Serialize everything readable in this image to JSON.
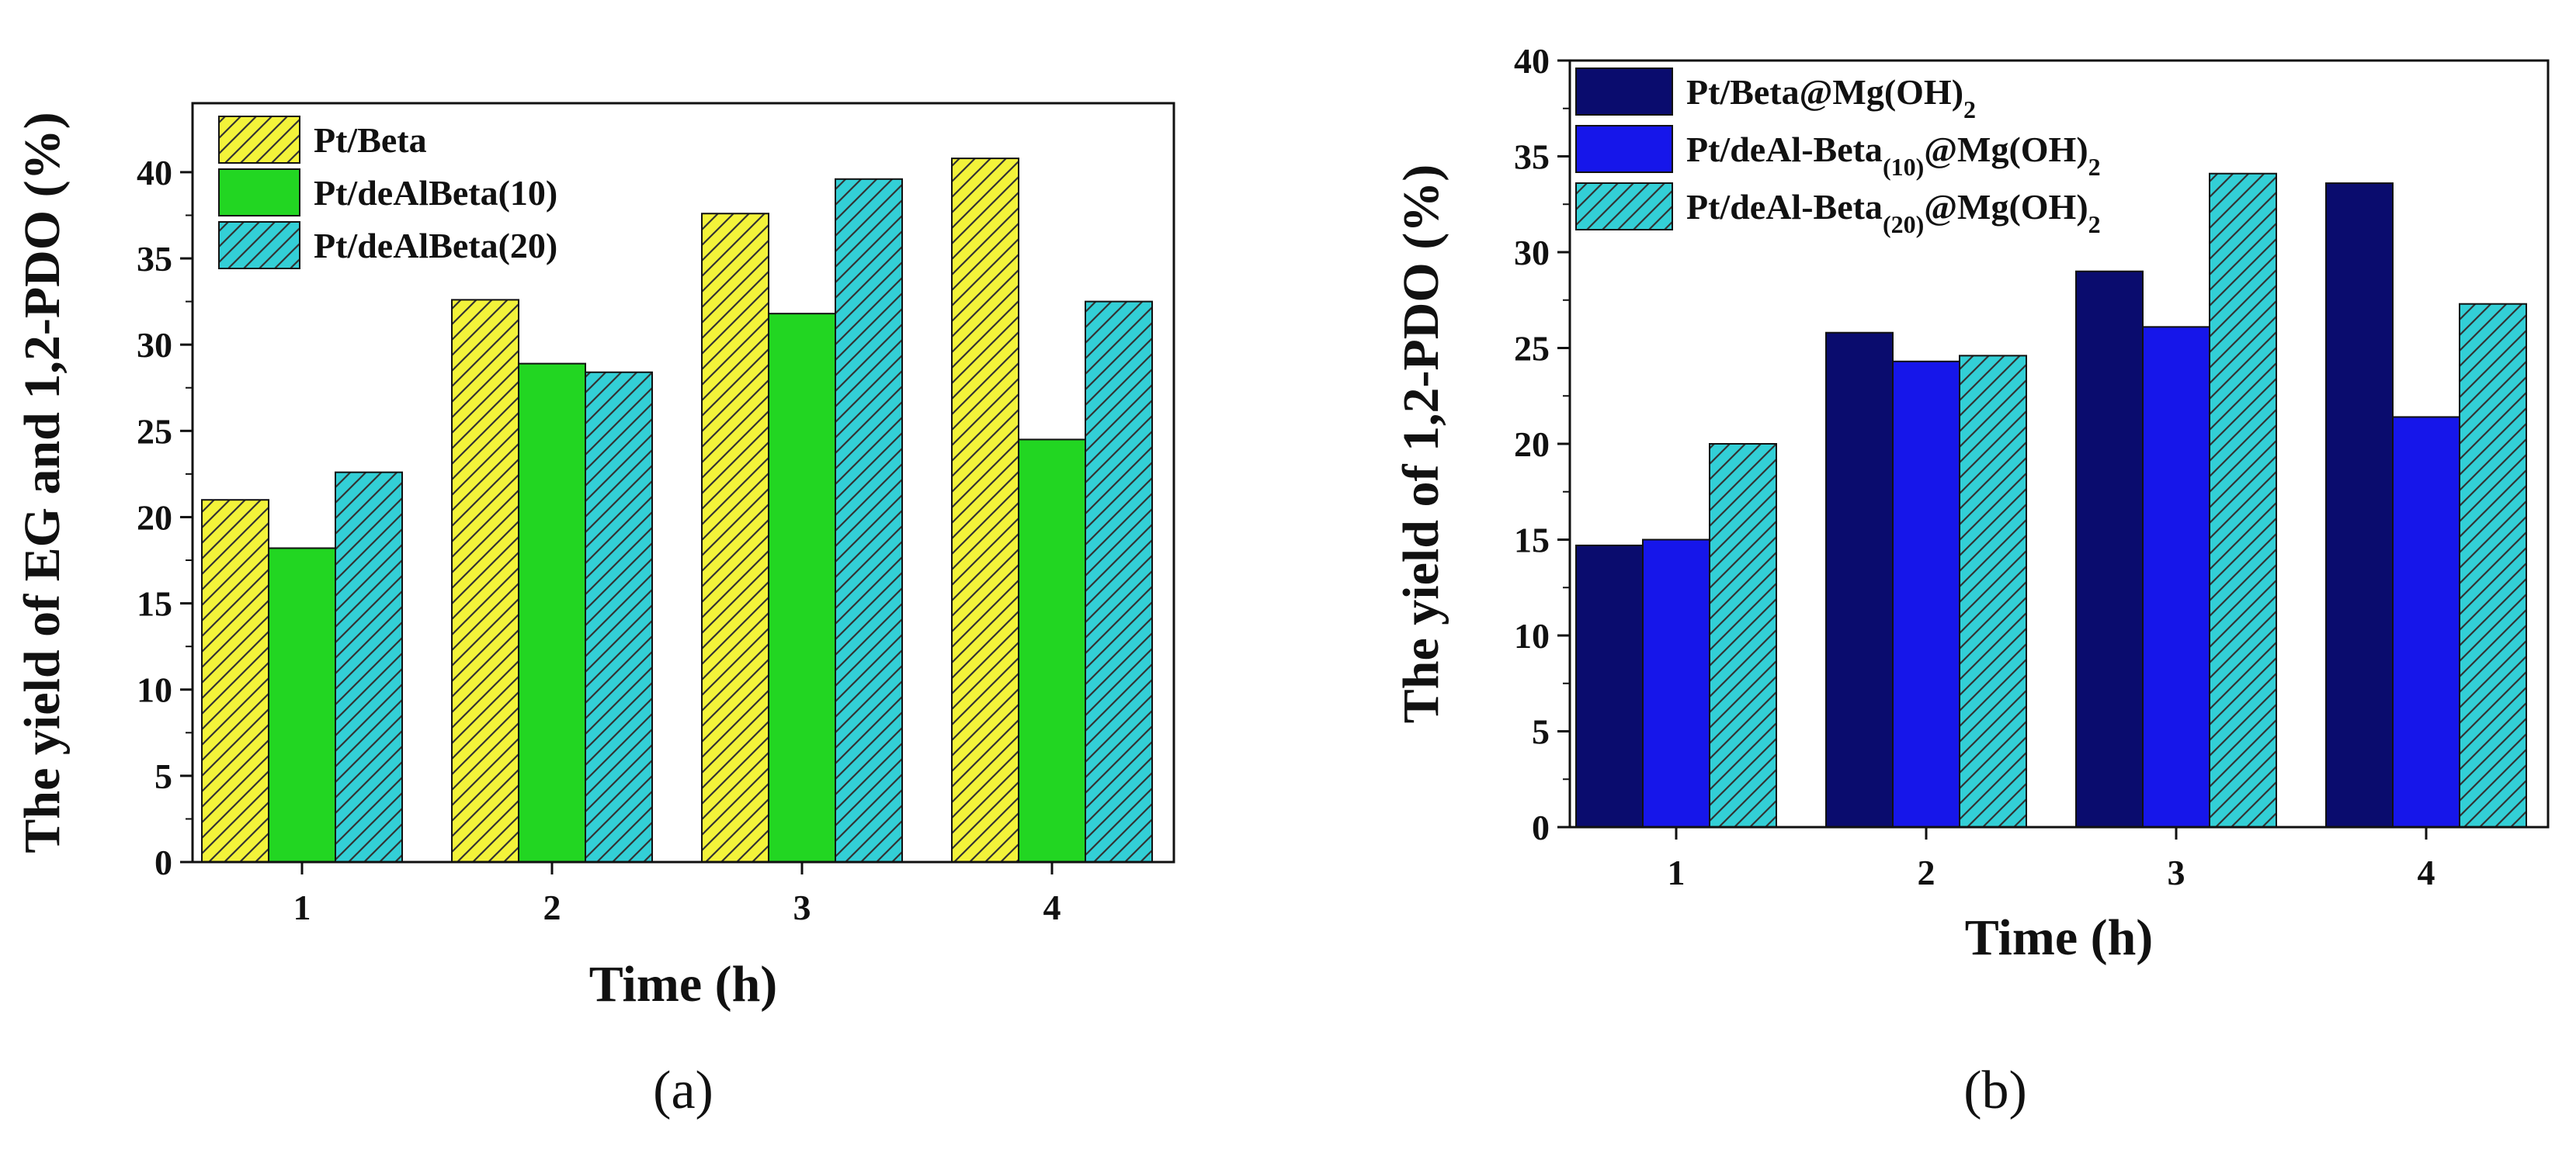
{
  "chart_data": [
    {
      "type": "bar",
      "panel_label": "(a)",
      "xlabel": "Time (h)",
      "ylabel": "The yield of EG and 1,2-PDO (%)",
      "categories": [
        "1",
        "2",
        "3",
        "4"
      ],
      "ylim": [
        0,
        44
      ],
      "yticks": [
        0,
        5,
        10,
        15,
        20,
        25,
        30,
        35,
        40
      ],
      "legend_position": "top-left",
      "series": [
        {
          "name": "Pt/Beta",
          "name_parts": [
            {
              "text": "Pt/Beta"
            }
          ],
          "color": "#f3f33a",
          "pattern": "hatch",
          "values": [
            21.0,
            32.6,
            37.6,
            40.8
          ]
        },
        {
          "name": "Pt/deAlBeta(10)",
          "name_parts": [
            {
              "text": "Pt/deAlBeta(10)"
            }
          ],
          "color": "#22d622",
          "pattern": "none",
          "values": [
            18.2,
            28.9,
            31.8,
            24.5
          ]
        },
        {
          "name": "Pt/deAlBeta(20)",
          "name_parts": [
            {
              "text": "Pt/deAlBeta(20)"
            }
          ],
          "color": "#33cfd6",
          "pattern": "hatch",
          "values": [
            22.6,
            28.4,
            39.6,
            32.5
          ]
        }
      ]
    },
    {
      "type": "bar",
      "panel_label": "(b)",
      "xlabel": "Time (h)",
      "ylabel": "The yield of 1,2-PDO (%)",
      "categories": [
        "1",
        "2",
        "3",
        "4"
      ],
      "ylim": [
        0,
        40
      ],
      "yticks": [
        0,
        5,
        10,
        15,
        20,
        25,
        30,
        35,
        40
      ],
      "legend_position": "top-left",
      "series": [
        {
          "name": "Pt/Beta@Mg(OH)2",
          "name_parts": [
            {
              "text": "Pt/Beta@Mg(OH)"
            },
            {
              "text": "2",
              "sub": true
            }
          ],
          "color": "#0a0c6e",
          "pattern": "none",
          "values": [
            14.7,
            25.8,
            29.0,
            33.6
          ]
        },
        {
          "name": "Pt/deAl-Beta(10)@Mg(OH)2",
          "name_parts": [
            {
              "text": "Pt/deAl-Beta"
            },
            {
              "text": "(10)",
              "sub": true
            },
            {
              "text": "@Mg(OH)"
            },
            {
              "text": "2",
              "sub": true
            }
          ],
          "color": "#1616ea",
          "pattern": "none",
          "values": [
            15.0,
            24.3,
            26.1,
            21.4
          ]
        },
        {
          "name": "Pt/deAl-Beta(20)@Mg(OH)2",
          "name_parts": [
            {
              "text": "Pt/deAl-Beta"
            },
            {
              "text": "(20)",
              "sub": true
            },
            {
              "text": "@Mg(OH)"
            },
            {
              "text": "2",
              "sub": true
            }
          ],
          "color": "#33cfd6",
          "pattern": "hatch",
          "values": [
            20.0,
            24.6,
            34.1,
            27.3
          ]
        }
      ]
    }
  ]
}
